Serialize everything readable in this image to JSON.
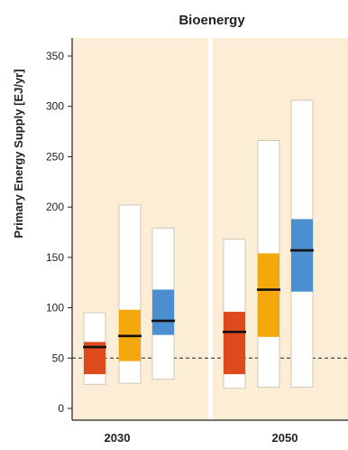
{
  "chart_data": {
    "type": "box",
    "title": "Bioenergy",
    "ylabel": "Primary Energy Supply [EJ/yr]",
    "xlabel": "",
    "ylim": [
      0,
      370
    ],
    "yticks": [
      0,
      50,
      100,
      150,
      200,
      250,
      300,
      350
    ],
    "reference_line": 50,
    "categories": [
      "2030",
      "2050"
    ],
    "colors": {
      "background": "#fbedd6",
      "series_1": "#dd4a1c",
      "series_2": "#f5a80d",
      "series_3": "#4b8fd0"
    },
    "series": [
      {
        "color_key": "series_1",
        "values": [
          {
            "min": 24,
            "q1": 34,
            "median": 61,
            "q3": 66,
            "max": 95
          },
          {
            "min": 20,
            "q1": 34,
            "median": 76,
            "q3": 96,
            "max": 168
          }
        ]
      },
      {
        "color_key": "series_2",
        "values": [
          {
            "min": 25,
            "q1": 47,
            "median": 72,
            "q3": 98,
            "max": 202
          },
          {
            "min": 21,
            "q1": 71,
            "median": 118,
            "q3": 154,
            "max": 266
          }
        ]
      },
      {
        "color_key": "series_3",
        "values": [
          {
            "min": 29,
            "q1": 73,
            "median": 87,
            "q3": 118,
            "max": 179
          },
          {
            "min": 21,
            "q1": 116,
            "median": 157,
            "q3": 188,
            "max": 306
          }
        ]
      }
    ]
  }
}
